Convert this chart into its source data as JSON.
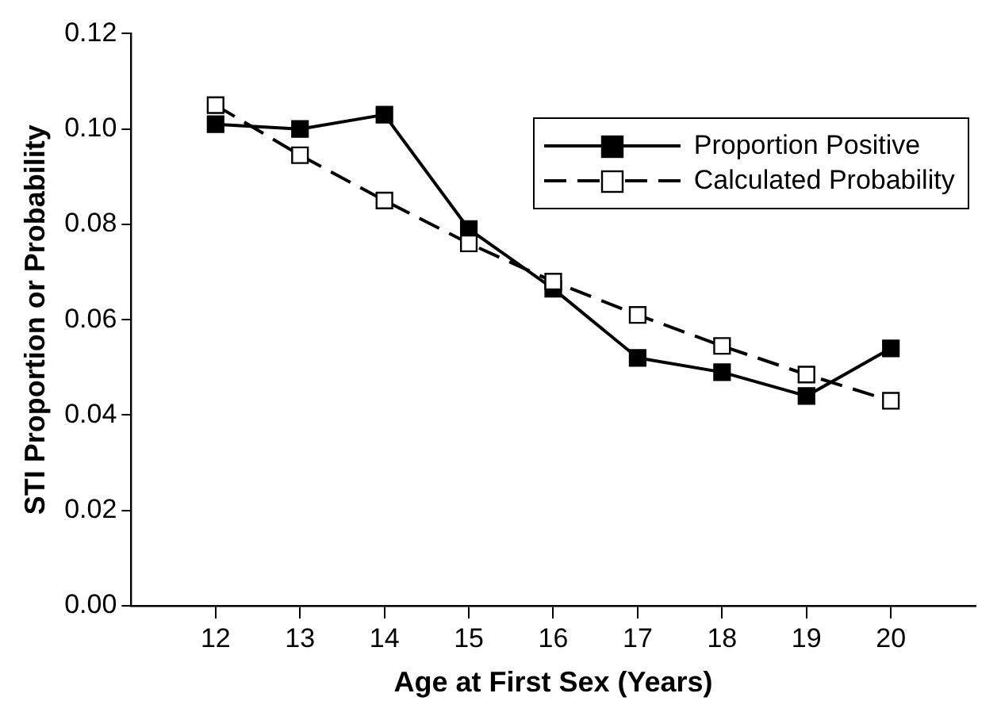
{
  "chart_data": {
    "type": "line",
    "xlabel": "Age at First Sex (Years)",
    "ylabel": "STI Proportion or Probability",
    "x": [
      12,
      13,
      14,
      15,
      16,
      17,
      18,
      19,
      20
    ],
    "series": [
      {
        "name": "Proportion Positive",
        "color": "#000000",
        "line_style": "solid",
        "marker": "square",
        "values": [
          0.101,
          0.1,
          0.103,
          0.079,
          0.0665,
          0.052,
          0.049,
          0.044,
          0.054
        ]
      },
      {
        "name": "Calculated Probability",
        "color": "#000000",
        "line_style": "dashed",
        "marker": "square",
        "values": [
          0.105,
          0.0945,
          0.085,
          0.076,
          0.068,
          0.061,
          0.0545,
          0.0485,
          0.043
        ]
      }
    ],
    "xlim": [
      11,
      21
    ],
    "xticks": [
      12,
      13,
      14,
      15,
      16,
      17,
      18,
      19,
      20
    ],
    "ylim": [
      0,
      0.12
    ],
    "yticks": [
      {
        "value": 0,
        "label": "0.00"
      },
      {
        "value": 0.02,
        "label": "0.02"
      },
      {
        "value": 0.04,
        "label": "0.04"
      },
      {
        "value": 0.06,
        "label": "0.06"
      },
      {
        "value": 0.08,
        "label": "0.08"
      },
      {
        "value": 0.1,
        "label": "0.10"
      },
      {
        "value": 0.12,
        "label": "0.12"
      }
    ],
    "grid": false,
    "legend": "top right"
  }
}
